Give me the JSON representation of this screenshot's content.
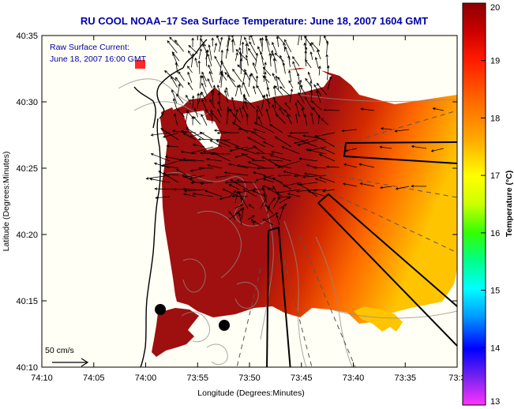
{
  "title": "RU COOL  NOAA–17  Sea Surface Temperature:  June 18, 2007 1604 GMT",
  "annotation": {
    "line1": "Raw Surface Current:",
    "line2": "June 18, 2007 16:00 GMT"
  },
  "scale_label": "50 cm/s",
  "axes": {
    "xlabel": "Longitude (Degrees:Minutes)",
    "ylabel": "Latitude (Degrees:Minutes)",
    "xticks": [
      "74:10",
      "74:05",
      "74:00",
      "73:55",
      "73:50",
      "73:45",
      "73:40",
      "73:35",
      "73:3"
    ],
    "yticks": [
      "40:35",
      "40:30",
      "40:25",
      "40:20",
      "40:15",
      "40:10"
    ]
  },
  "colorbar": {
    "label": "Temperature (°C)",
    "ticks": [
      "20",
      "19",
      "18",
      "17",
      "16",
      "15",
      "14",
      "13"
    ],
    "min": 13,
    "max": 20,
    "colors": [
      "#ff33ff",
      "#7722ee",
      "#0000ff",
      "#0099ff",
      "#00ffff",
      "#00ff88",
      "#33ff00",
      "#ccff00",
      "#ffff00",
      "#ffaa00",
      "#ff6600",
      "#ff1a00",
      "#cc0000",
      "#8b0000"
    ]
  },
  "map": {
    "land_color": "#fffff5",
    "sst_dark": "#9e0f0f",
    "sst_mid": "#e02a00",
    "sst_warm": "#ff7a00",
    "sst_light": "#ffc400"
  }
}
